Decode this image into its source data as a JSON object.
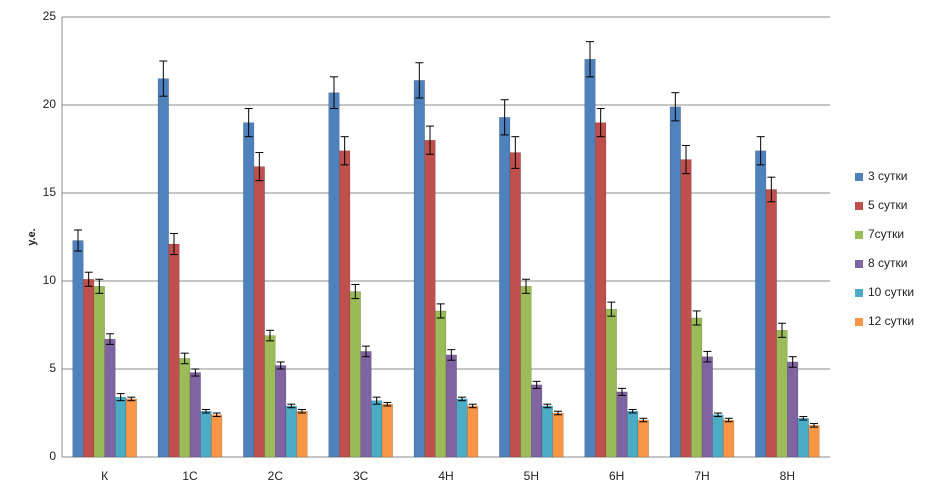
{
  "chart_data": {
    "type": "bar",
    "y_label": "у.е.",
    "categories": [
      "К",
      "1С",
      "2С",
      "3С",
      "4Н",
      "5Н",
      "6Н",
      "7Н",
      "8Н"
    ],
    "series": [
      {
        "name": "3 сутки",
        "color": "#4f81bd",
        "values": [
          12.3,
          21.5,
          19.0,
          20.7,
          21.4,
          19.3,
          22.6,
          19.9,
          17.4
        ],
        "errors": [
          0.6,
          1.0,
          0.8,
          0.9,
          1.0,
          1.0,
          1.0,
          0.8,
          0.8
        ]
      },
      {
        "name": "5 сутки",
        "color": "#c0504d",
        "values": [
          10.1,
          12.1,
          16.5,
          17.4,
          18.0,
          17.3,
          19.0,
          16.9,
          15.2
        ],
        "errors": [
          0.4,
          0.6,
          0.8,
          0.8,
          0.8,
          0.9,
          0.8,
          0.8,
          0.7
        ]
      },
      {
        "name": "7сутки",
        "color": "#9bbb59",
        "values": [
          9.7,
          5.6,
          6.9,
          9.4,
          8.3,
          9.7,
          8.4,
          7.9,
          7.2
        ],
        "errors": [
          0.4,
          0.3,
          0.3,
          0.4,
          0.4,
          0.4,
          0.4,
          0.4,
          0.4
        ]
      },
      {
        "name": "8 сутки",
        "color": "#8064a2",
        "values": [
          6.7,
          4.8,
          5.2,
          6.0,
          5.8,
          4.1,
          3.7,
          5.7,
          5.4
        ],
        "errors": [
          0.3,
          0.2,
          0.2,
          0.3,
          0.3,
          0.2,
          0.2,
          0.3,
          0.3
        ]
      },
      {
        "name": "10 сутки",
        "color": "#4bacc6",
        "values": [
          3.4,
          2.6,
          2.9,
          3.2,
          3.3,
          2.9,
          2.6,
          2.4,
          2.2
        ],
        "errors": [
          0.2,
          0.1,
          0.1,
          0.2,
          0.1,
          0.1,
          0.1,
          0.1,
          0.1
        ]
      },
      {
        "name": "12 сутки",
        "color": "#f79646",
        "values": [
          3.3,
          2.4,
          2.6,
          3.0,
          2.9,
          2.5,
          2.1,
          2.1,
          1.8
        ],
        "errors": [
          0.1,
          0.1,
          0.1,
          0.1,
          0.1,
          0.1,
          0.1,
          0.1,
          0.1
        ]
      }
    ],
    "ylim": [
      0,
      25
    ],
    "yticks": [
      0,
      5,
      10,
      15,
      20,
      25
    ],
    "grid": true,
    "legend": "right"
  }
}
